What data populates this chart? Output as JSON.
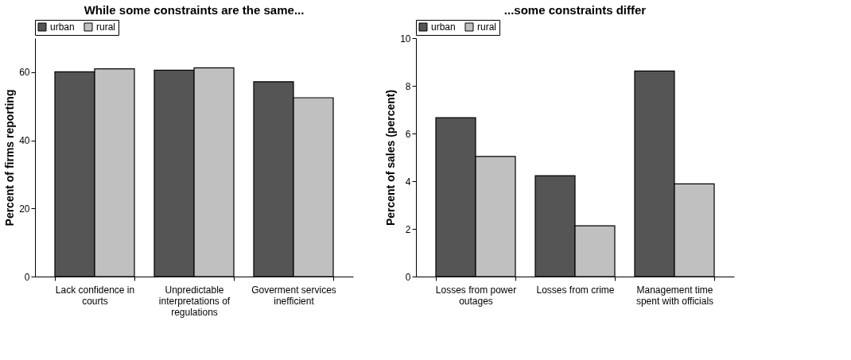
{
  "chart_data": [
    {
      "type": "bar",
      "title": "While some constraints are the same...",
      "ylabel": "Percent of firms reporting",
      "categories": [
        "Lack confidence in courts",
        "Unpredictable interpretations of regulations",
        "Goverment services inefficient"
      ],
      "series": [
        {
          "name": "urban",
          "color": "#555555",
          "values": [
            60.1,
            60.6,
            57.2
          ]
        },
        {
          "name": "rural",
          "color": "#c0c0c0",
          "values": [
            61.0,
            61.3,
            52.5
          ]
        }
      ],
      "ylim": [
        0,
        70
      ],
      "yticks": [
        0,
        20,
        40,
        60
      ],
      "grid": false,
      "legend": "top"
    },
    {
      "type": "bar",
      "title": "...some constraints differ",
      "ylabel": "Percent of sales (percent)",
      "categories": [
        "Losses from power outages",
        "Losses from crime",
        "Management time spent with officials"
      ],
      "series": [
        {
          "name": "urban",
          "color": "#555555",
          "values": [
            6.66,
            4.23,
            8.62
          ]
        },
        {
          "name": "rural",
          "color": "#c0c0c0",
          "values": [
            5.04,
            2.13,
            3.89
          ]
        }
      ],
      "ylim": [
        0,
        10
      ],
      "yticks": [
        0,
        2,
        4,
        6,
        8,
        10
      ],
      "grid": false,
      "legend": "top"
    }
  ]
}
